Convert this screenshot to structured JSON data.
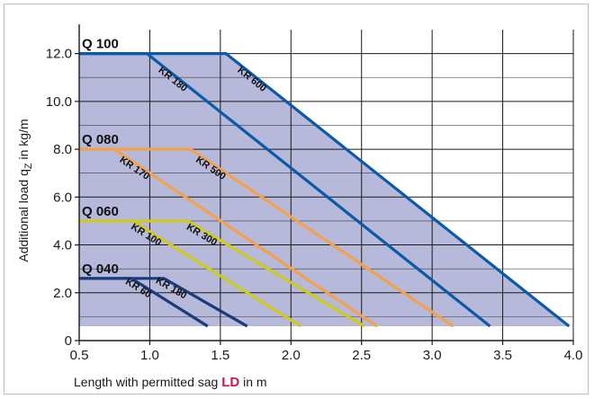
{
  "chart_data": {
    "type": "line",
    "xlabel_prefix": "Length with permitted sag ",
    "xlabel_symbol": "LD",
    "xlabel_suffix": " in m",
    "ylabel_prefix": "Additional load q",
    "ylabel_sub": "Z",
    "ylabel_suffix": " in kg/m",
    "xlim": [
      0.5,
      4.0
    ],
    "ylim": [
      0,
      13.0
    ],
    "x_ticks": [
      {
        "value": 0.5,
        "label": "0.5"
      },
      {
        "value": 1.0,
        "label": "1.0"
      },
      {
        "value": 1.5,
        "label": "1.5"
      },
      {
        "value": 2.0,
        "label": "2.0"
      },
      {
        "value": 2.5,
        "label": "2.5"
      },
      {
        "value": 3.0,
        "label": "3.0"
      },
      {
        "value": 3.5,
        "label": "3.5"
      },
      {
        "value": 4.0,
        "label": "4.0"
      }
    ],
    "y_ticks": [
      {
        "value": 0,
        "label": "0"
      },
      {
        "value": 2.0,
        "label": "2.0"
      },
      {
        "value": 4.0,
        "label": "4.0"
      },
      {
        "value": 6.0,
        "label": "6.0"
      },
      {
        "value": 8.0,
        "label": "8.0"
      },
      {
        "value": 10.0,
        "label": "10.0"
      },
      {
        "value": 12.0,
        "label": "12.0"
      }
    ],
    "minor_y_gridlines": [
      1.0,
      3.0,
      5.0,
      7.0,
      9.0,
      11.0
    ],
    "grid": true,
    "shaded_region_color": "#b6b9d9",
    "groups": [
      {
        "label": "Q 100",
        "y": 12.0
      },
      {
        "label": "Q 080",
        "y": 8.0
      },
      {
        "label": "Q 060",
        "y": 5.0
      },
      {
        "label": "Q 040",
        "y": 2.6
      }
    ],
    "series": [
      {
        "name": "KR 600",
        "color": "#0a5aa8",
        "x": [
          0.5,
          1.54,
          3.97
        ],
        "y": [
          12.0,
          12.0,
          0.6
        ]
      },
      {
        "name": "KR 180",
        "color": "#0a5aa8",
        "x": [
          0.5,
          0.98,
          3.41
        ],
        "y": [
          12.0,
          12.0,
          0.6
        ]
      },
      {
        "name": "KR 500",
        "color": "#f4a14b",
        "x": [
          0.5,
          1.29,
          3.15
        ],
        "y": [
          8.0,
          8.0,
          0.6
        ]
      },
      {
        "name": "KR 170",
        "color": "#f4a14b",
        "x": [
          0.5,
          0.75,
          2.61
        ],
        "y": [
          8.0,
          8.0,
          0.6
        ]
      },
      {
        "name": "KR 300",
        "color": "#cfcb1c",
        "x": [
          0.5,
          1.27,
          2.52
        ],
        "y": [
          5.0,
          5.0,
          0.6
        ]
      },
      {
        "name": "KR 100",
        "color": "#cfcb1c",
        "x": [
          0.5,
          0.88,
          2.07
        ],
        "y": [
          5.0,
          5.0,
          0.6
        ]
      },
      {
        "name": "KR 180",
        "color": "#1b3a7a",
        "x": [
          0.5,
          1.1,
          1.69
        ],
        "y": [
          2.6,
          2.6,
          0.6
        ]
      },
      {
        "name": "KR 60",
        "color": "#1b3a7a",
        "x": [
          0.5,
          0.87,
          1.41
        ],
        "y": [
          2.6,
          2.6,
          0.6
        ]
      }
    ]
  }
}
